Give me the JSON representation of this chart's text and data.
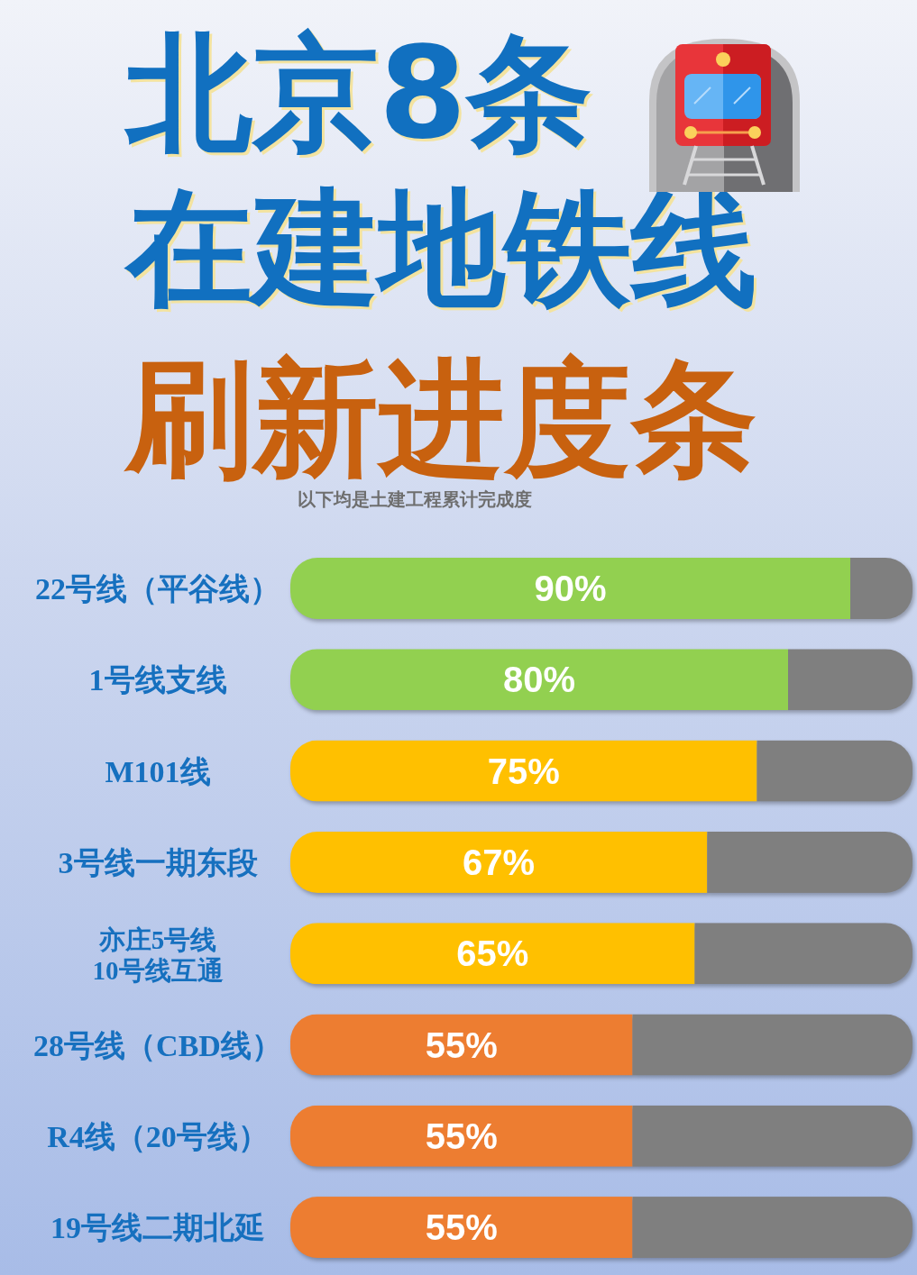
{
  "chart_data": {
    "type": "bar",
    "orientation": "horizontal",
    "stacked": true,
    "title": "北京8条在建地铁线",
    "subtitle": "刷新进度条",
    "annotations": [
      "以下均是土建工程累计完成度"
    ],
    "categories": [
      "22号线（平谷线）",
      "1号线支线",
      "M101线",
      "3号线一期东段",
      "亦庄5号线\n10号线互通",
      "28号线（CBD线）",
      "R4线（20号线）",
      "19号线二期北延"
    ],
    "xlim": [
      0,
      100
    ],
    "tick_labels": "y",
    "series": [
      {
        "values": [
          90,
          80,
          75,
          67,
          65,
          55,
          55,
          55
        ],
        "colors": [
          "#92d050",
          "#92d050",
          "#ffc000",
          "#ffc000",
          "#ffc000",
          "#ed7d31",
          "#ed7d31",
          "#ed7d31"
        ],
        "value_labels": [
          "90%",
          "80%",
          "75%",
          "67%",
          "65%",
          "55%",
          "55%",
          "55%"
        ]
      },
      {
        "values": [
          10,
          20,
          25,
          33,
          35,
          45,
          45,
          45
        ],
        "color": "#7f7f7f"
      }
    ]
  }
}
